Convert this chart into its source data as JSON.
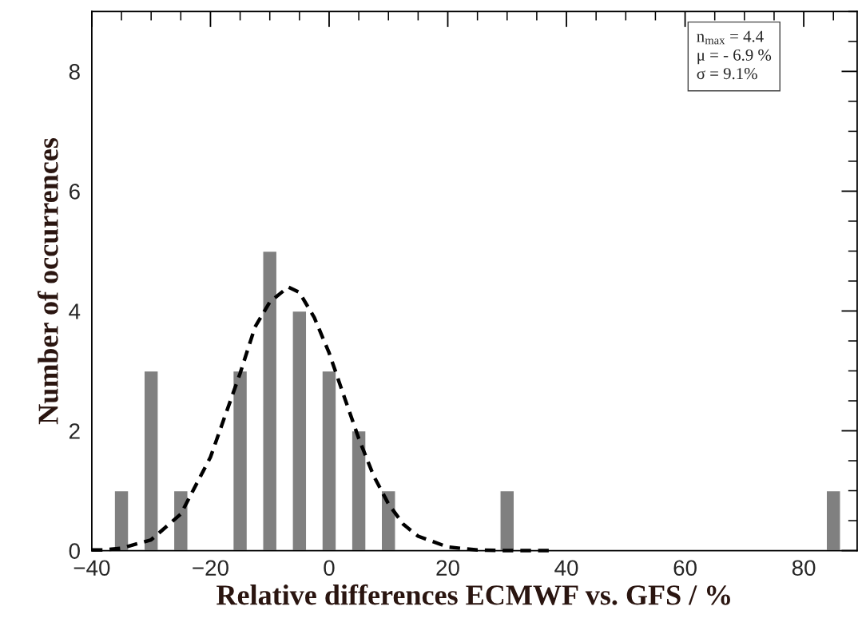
{
  "chart_data": {
    "type": "bar",
    "xlabel": "Relative differences ECMWF vs. GFS / %",
    "ylabel": "Number of occurrences",
    "x": [
      -35,
      -30,
      -25,
      -15,
      -10,
      -5,
      0,
      5,
      10,
      30,
      85
    ],
    "series": [
      {
        "color": "#808080",
        "values": [
          1,
          3,
          1,
          3,
          5,
          4,
          3,
          2,
          1,
          1,
          1
        ]
      },
      {
        "type": "line",
        "color": "#000000",
        "line_style": "dashed",
        "x": [
          -40,
          -38,
          -35,
          -30,
          -25,
          -20,
          -17.5,
          -15,
          -12.5,
          -10,
          -6.9,
          -5,
          -2.5,
          0,
          2.5,
          5,
          7.5,
          10,
          12.5,
          15,
          20,
          25,
          30,
          38
        ],
        "values": [
          0.01,
          0.01,
          0.04,
          0.18,
          0.61,
          1.56,
          2.26,
          2.96,
          3.73,
          4.15,
          4.4,
          4.31,
          3.89,
          3.3,
          2.58,
          1.87,
          1.25,
          0.78,
          0.44,
          0.24,
          0.06,
          0.01,
          0,
          0
        ]
      }
    ],
    "xlim": [
      -40,
      89
    ],
    "xticks": [
      -40,
      -20,
      0,
      20,
      40,
      60,
      80
    ],
    "ylim": [
      0,
      9
    ],
    "yticks": [
      0,
      2,
      4,
      6,
      8
    ],
    "grid": false,
    "annotations": [
      "n$_{max}$ = 4.4",
      "μ = - 6.9 %",
      "σ = 9.1%"
    ]
  }
}
